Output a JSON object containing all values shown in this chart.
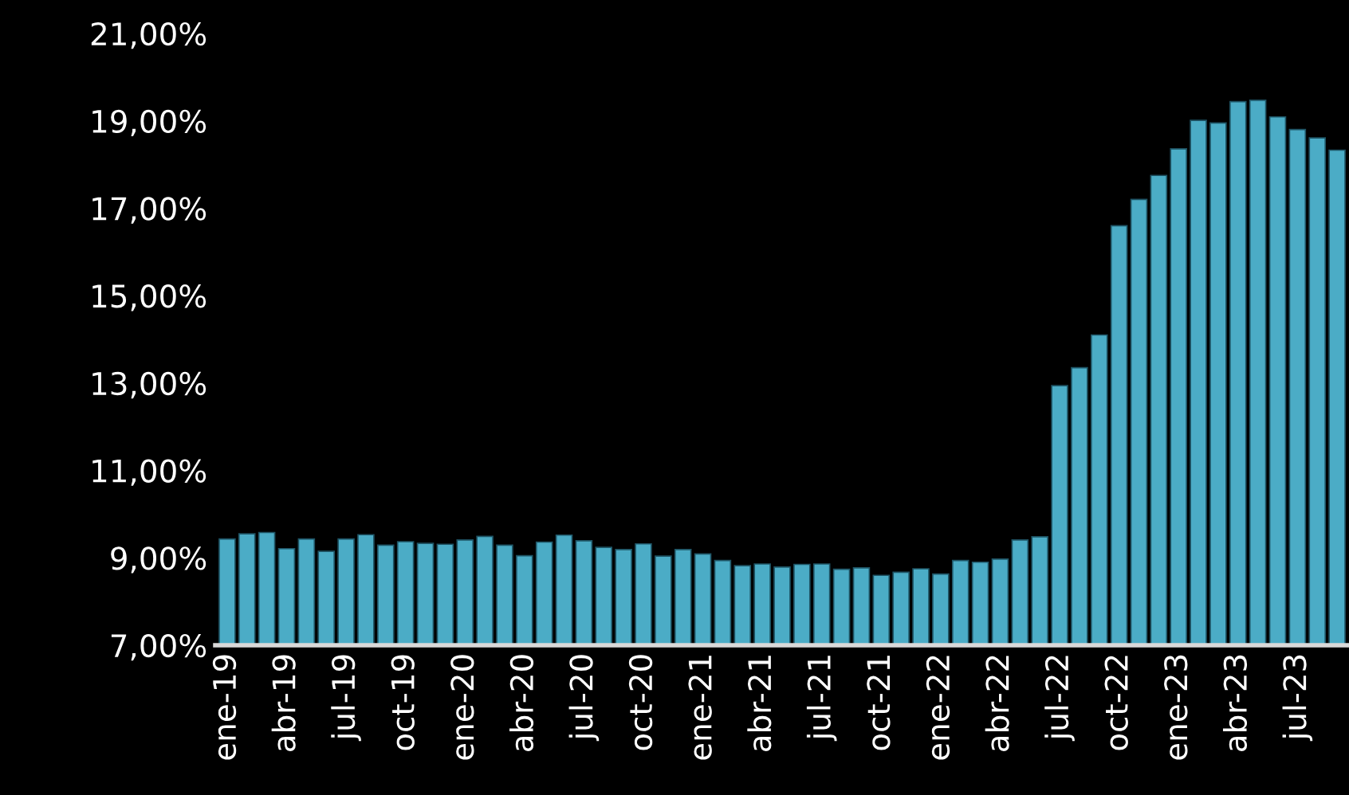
{
  "chart_data": {
    "type": "bar",
    "categories": [
      "ene-19",
      null,
      null,
      "abr-19",
      null,
      null,
      "jul-19",
      null,
      null,
      "oct-19",
      null,
      null,
      "ene-20",
      null,
      null,
      "abr-20",
      null,
      null,
      "jul-20",
      null,
      null,
      "oct-20",
      null,
      null,
      "ene-21",
      null,
      null,
      "abr-21",
      null,
      null,
      "jul-21",
      null,
      null,
      "oct-21",
      null,
      null,
      "ene-22",
      null,
      null,
      "abr-22",
      null,
      null,
      "jul-22",
      null,
      null,
      "oct-22",
      null,
      null,
      "ene-23",
      null,
      null,
      "abr-23",
      null,
      null,
      "jul-23",
      null,
      null
    ],
    "values": [
      9.43,
      9.55,
      9.58,
      9.21,
      9.43,
      9.15,
      9.43,
      9.53,
      9.29,
      9.37,
      9.33,
      9.31,
      9.41,
      9.49,
      9.29,
      9.05,
      9.36,
      9.52,
      9.39,
      9.24,
      9.19,
      9.32,
      9.04,
      9.19,
      9.09,
      8.94,
      8.82,
      8.86,
      8.79,
      8.85,
      8.86,
      8.74,
      8.77,
      8.6,
      8.67,
      8.75,
      8.63,
      8.94,
      8.9,
      8.97,
      9.41,
      9.48,
      12.94,
      13.35,
      14.1,
      16.6,
      17.2,
      17.75,
      18.36,
      19.01,
      18.95,
      19.44,
      19.47,
      19.09,
      18.8,
      18.61,
      18.33
    ],
    "color": "#4bacc6",
    "ylim": [
      7,
      21
    ],
    "yticks": [
      {
        "value": 7,
        "label": "7,00%"
      },
      {
        "value": 9,
        "label": "9,00%"
      },
      {
        "value": 11,
        "label": "11,00%"
      },
      {
        "value": 13,
        "label": "13,00%"
      },
      {
        "value": 15,
        "label": "15,00%"
      },
      {
        "value": 17,
        "label": "17,00%"
      },
      {
        "value": 19,
        "label": "19,00%"
      },
      {
        "value": 21,
        "label": "21,00%"
      }
    ],
    "grid": false,
    "legend": false
  }
}
